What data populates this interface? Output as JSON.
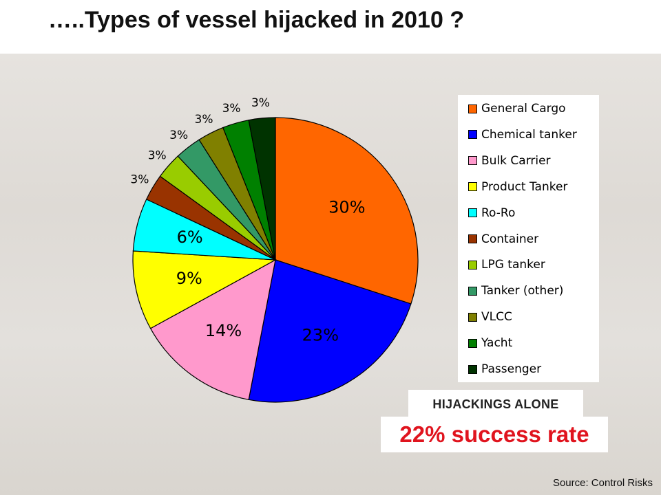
{
  "title": "…..Types of vessel hijacked in 2010 ?",
  "chart_data": {
    "type": "pie",
    "title": "",
    "categories": [
      "General Cargo",
      "Chemical tanker",
      "Bulk Carrier",
      "Product Tanker",
      "Ro-Ro",
      "Container",
      "LPG tanker",
      "Tanker (other)",
      "VLCC",
      "Yacht",
      "Passenger"
    ],
    "values": [
      30,
      23,
      14,
      9,
      6,
      3,
      3,
      3,
      3,
      3,
      3
    ],
    "labels": [
      "30%",
      "23%",
      "14%",
      "9%",
      "6%",
      "3%",
      "3%",
      "3%",
      "3%",
      "3%",
      "3%"
    ],
    "colors": [
      "#ff6600",
      "#0000ff",
      "#ff99cc",
      "#ffff00",
      "#00ffff",
      "#993300",
      "#99cc00",
      "#339966",
      "#808000",
      "#008000",
      "#003300"
    ],
    "legend_position": "right"
  },
  "legend": [
    "General Cargo",
    "Chemical tanker",
    "Bulk Carrier",
    "Product Tanker",
    "Ro-Ro",
    "Container",
    "LPG tanker",
    "Tanker (other)",
    "VLCC",
    "Yacht",
    "Passenger"
  ],
  "callout": {
    "heading": "HIJACKINGS ALONE",
    "rate": "22% success rate"
  },
  "source": "Source: Control Risks"
}
